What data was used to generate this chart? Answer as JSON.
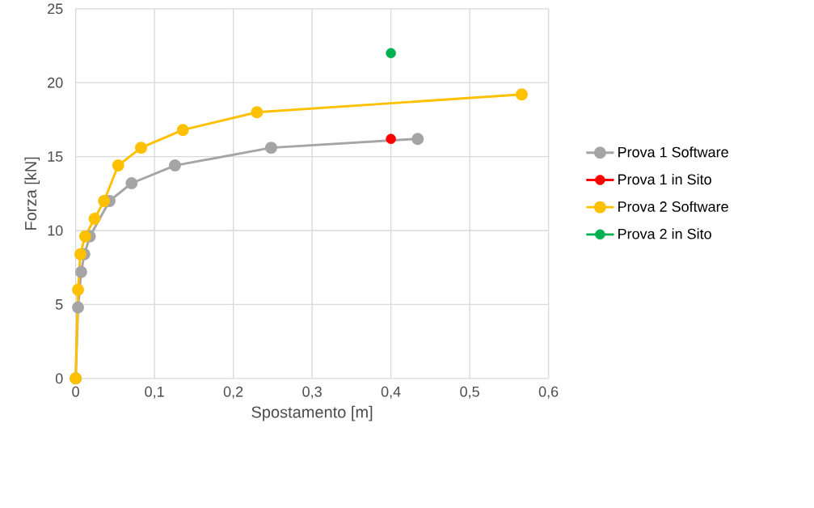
{
  "chart_data": {
    "type": "line",
    "xlabel": "Spostamento [m]",
    "ylabel": "Forza [kN]",
    "xlim": [
      0,
      0.6
    ],
    "ylim": [
      0,
      25
    ],
    "xticks": [
      0,
      {
        "value": 0.1,
        "label": "0,1"
      },
      {
        "value": 0.2,
        "label": "0,2"
      },
      {
        "value": 0.3,
        "label": "0,3"
      },
      {
        "value": 0.4,
        "label": "0,4"
      },
      {
        "value": 0.5,
        "label": "0,5"
      },
      {
        "value": 0.6,
        "label": "0,6"
      }
    ],
    "yticks": [
      0,
      5,
      10,
      15,
      20,
      25
    ],
    "grid": true,
    "legend": "right",
    "marker": "circle",
    "series": [
      {
        "name": "Prova 1 Software",
        "color": "#a5a5a5",
        "x": [
          0,
          0.003,
          0.004,
          0.007,
          0.011,
          0.018,
          0.026,
          0.043,
          0.071,
          0.126,
          0.248,
          0.434
        ],
        "values": [
          0,
          4.8,
          null,
          7.2,
          8.4,
          9.6,
          null,
          12.0,
          13.2,
          14.4,
          15.6,
          16.2
        ]
      },
      {
        "name": "Prova 1 in Sito",
        "type": "scatter",
        "color": "#ff0000",
        "x": [
          0.4
        ],
        "values": [
          16.2
        ]
      },
      {
        "name": "Prova 2 Software",
        "color": "#ffc000",
        "x": [
          0,
          0.003,
          0.006,
          0.012,
          0.024,
          0.036,
          0.054,
          0.083,
          0.136,
          0.23,
          0.566
        ],
        "values": [
          0,
          6.0,
          8.4,
          9.6,
          10.8,
          12.0,
          14.4,
          15.6,
          16.8,
          18.0,
          19.2
        ]
      },
      {
        "name": "Prova 2 in Sito",
        "type": "scatter",
        "color": "#00b050",
        "x": [
          0.4
        ],
        "values": [
          22.0
        ]
      }
    ]
  }
}
